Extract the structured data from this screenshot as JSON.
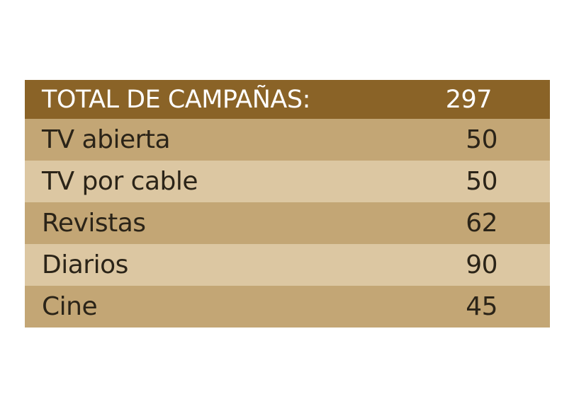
{
  "chart_data": {
    "type": "table",
    "header": {
      "label": "TOTAL DE CAMPAÑAS:",
      "value": "297"
    },
    "rows": [
      {
        "label": "TV abierta",
        "value": "50"
      },
      {
        "label": "TV por cable",
        "value": "50"
      },
      {
        "label": "Revistas",
        "value": "62"
      },
      {
        "label": "Diarios",
        "value": "90"
      },
      {
        "label": "Cine",
        "value": "45"
      }
    ],
    "colors": {
      "header_bg": "#8a6327",
      "row_dark": "#c3a675",
      "row_light": "#dcc7a2",
      "text": "#2b2418"
    }
  }
}
